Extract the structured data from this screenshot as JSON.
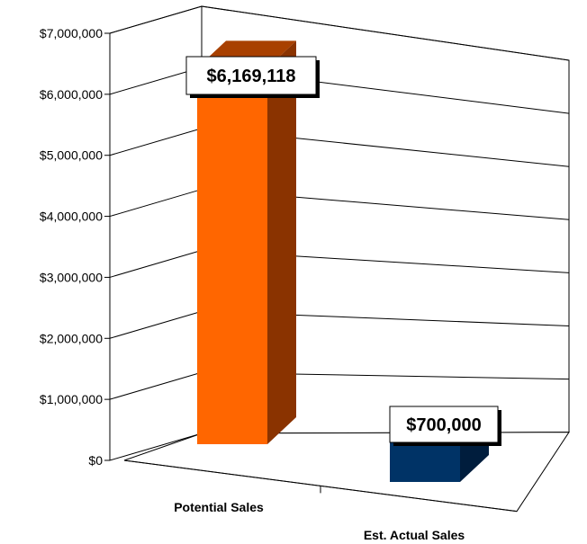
{
  "chart_data": {
    "type": "bar",
    "categories": [
      "Potential Sales",
      "Est. Actual Sales"
    ],
    "values": [
      6169118,
      700000
    ],
    "data_labels": [
      "$6,169,118",
      "$700,000"
    ],
    "ylim": [
      0,
      7000000
    ],
    "y_ticks": [
      0,
      1000000,
      2000000,
      3000000,
      4000000,
      5000000,
      6000000,
      7000000
    ],
    "y_tick_labels": [
      "$0",
      "$1,000,000",
      "$2,000,000",
      "$3,000,000",
      "$4,000,000",
      "$5,000,000",
      "$6,000,000",
      "$7,000,000"
    ],
    "grid": true,
    "legend": "none",
    "three_d": true,
    "colors": {
      "bars": [
        {
          "front": "#ff6600",
          "side": "#8a3300",
          "top": "#a84000"
        },
        {
          "front": "#003366",
          "side": "#001d3d",
          "top": "#0a2a55"
        }
      ],
      "grid": "#000000",
      "label_box": "#ffffff"
    }
  }
}
